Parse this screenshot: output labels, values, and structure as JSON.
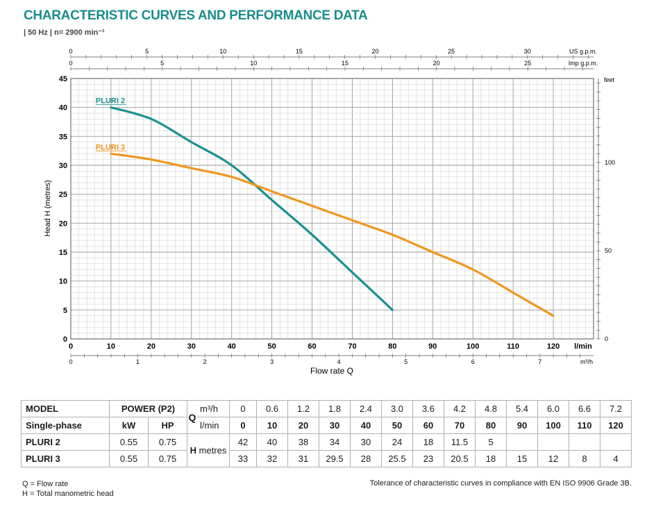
{
  "header": {
    "title": "CHARACTERISTIC CURVES AND PERFORMANCE DATA",
    "subtitle": "| 50 Hz | n= 2900 min⁻¹"
  },
  "chart_data": {
    "type": "line",
    "x_axis": {
      "label": "Flow rate Q",
      "unit": "l/min",
      "range": [
        0,
        130
      ],
      "ticks": [
        0,
        10,
        20,
        30,
        40,
        50,
        60,
        70,
        80,
        90,
        100,
        110,
        120
      ]
    },
    "x_axis_m3h": {
      "unit": "m³/h",
      "ticks": [
        0,
        1,
        2,
        3,
        4,
        5,
        6,
        7
      ]
    },
    "x_axis_us_gpm": {
      "unit": "US g.p.m.",
      "ticks": [
        0,
        5,
        10,
        15,
        20,
        25,
        30
      ]
    },
    "x_axis_imp_gpm": {
      "unit": "Imp g.p.m.",
      "ticks": [
        0,
        5,
        10,
        15,
        20,
        25
      ]
    },
    "y_axis": {
      "label": "Head H (metres)",
      "range": [
        0,
        45
      ],
      "ticks": [
        0,
        5,
        10,
        15,
        20,
        25,
        30,
        35,
        40,
        45
      ]
    },
    "y_axis_right": {
      "unit": "feet",
      "ticks": [
        0,
        50,
        100
      ]
    },
    "grid": true,
    "series": [
      {
        "name": "PLURI 2",
        "color": "#1a9090",
        "x": [
          10,
          20,
          30,
          40,
          50,
          60,
          70,
          80
        ],
        "y": [
          40,
          38,
          34,
          30,
          24,
          18,
          11.5,
          5
        ]
      },
      {
        "name": "PLURI 3",
        "color": "#f0961e",
        "x": [
          10,
          20,
          30,
          40,
          50,
          60,
          70,
          80,
          90,
          100,
          110,
          120
        ],
        "y": [
          32,
          31,
          29.5,
          28,
          25.5,
          23,
          20.5,
          18,
          15,
          12,
          8,
          4
        ]
      }
    ]
  },
  "table": {
    "col_model": "MODEL",
    "col_single_phase": "Single-phase",
    "col_power": "POWER (P2)",
    "col_kw": "kW",
    "col_hp": "HP",
    "q_label": "Q",
    "q_unit_m3h": "m³/h",
    "q_unit_lmin": "l/min",
    "h_label": "H",
    "h_unit": "metres",
    "m3h_values": [
      "0",
      "0.6",
      "1.2",
      "1.8",
      "2.4",
      "3.0",
      "3.6",
      "4.2",
      "4.8",
      "5.4",
      "6.0",
      "6.6",
      "7.2"
    ],
    "lmin_values": [
      "0",
      "10",
      "20",
      "30",
      "40",
      "50",
      "60",
      "70",
      "80",
      "90",
      "100",
      "110",
      "120"
    ],
    "rows": [
      {
        "model": "PLURI 2",
        "kw": "0.55",
        "hp": "0.75",
        "heads": [
          "42",
          "40",
          "38",
          "34",
          "30",
          "24",
          "18",
          "11.5",
          "5",
          "",
          "",
          "",
          ""
        ]
      },
      {
        "model": "PLURI 3",
        "kw": "0.55",
        "hp": "0.75",
        "heads": [
          "33",
          "32",
          "31",
          "29.5",
          "28",
          "25.5",
          "23",
          "20.5",
          "18",
          "15",
          "12",
          "8",
          "4"
        ]
      }
    ]
  },
  "footer": {
    "legend_q": "Q = Flow rate",
    "legend_h": "H = Total manometric head",
    "tolerance": "Tolerance of characteristic curves in compliance with EN ISO 9906 Grade 3B."
  }
}
